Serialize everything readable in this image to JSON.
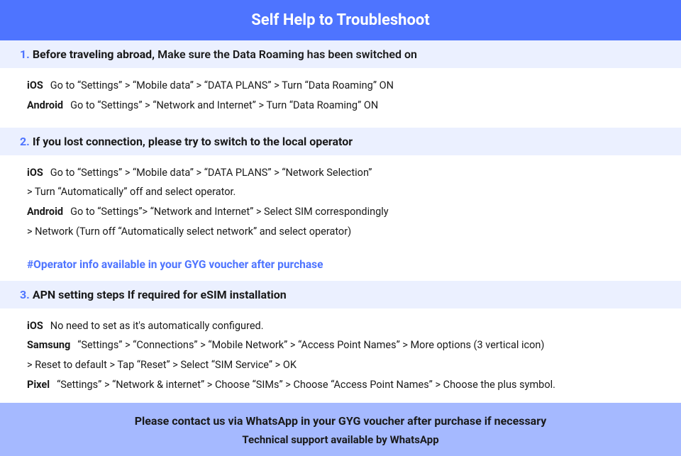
{
  "colors": {
    "header_bg": "#4e74ff",
    "header_text": "#ffffff",
    "section_header_bg": "#ebf0ff",
    "accent": "#4e74ff",
    "body_text": "#1a1a1a",
    "footer_bg": "#a5b9ff",
    "page_bg": "#ffffff"
  },
  "typography": {
    "title_fontsize": 22,
    "section_header_fontsize": 16,
    "body_fontsize": 14.5,
    "note_fontsize": 15.5,
    "footer_fontsize": 16
  },
  "title": "Self Help to Troubleshoot",
  "sections": [
    {
      "num": "1.",
      "bold_lead": "Before traveling abroad,",
      "rest": " Make sure the Data Roaming has been switched on",
      "instructions": [
        {
          "os": "iOS",
          "text": "Go to “Settings” > “Mobile data” > “DATA PLANS” > Turn “Data Roaming” ON",
          "cont": ""
        },
        {
          "os": "Android",
          "text": "Go to “Settings” > “Network and Internet” > Turn “Data Roaming” ON",
          "cont": ""
        }
      ],
      "note": ""
    },
    {
      "num": "2.",
      "bold_lead": "If you lost connection, please try to switch to the local operator",
      "rest": "",
      "instructions": [
        {
          "os": "iOS",
          "text": "Go to “Settings” > “Mobile data” > “DATA PLANS” > “Network Selection”",
          "cont": "> Turn “Automatically” off and select operator."
        },
        {
          "os": "Android",
          "text": "Go to “Settings”>  “Network and Internet” > Select SIM correspondingly",
          "cont": "> Network (Turn off “Automatically select network” and select operator)"
        }
      ],
      "note": "#Operator info available in your GYG voucher after purchase"
    },
    {
      "num": "3.",
      "bold_lead": "APN setting steps If required for eSIM installation",
      "rest": "",
      "instructions": [
        {
          "os": "iOS",
          "text": "No need to set as it's automatically configured.",
          "cont": ""
        },
        {
          "os": "Samsung",
          "text": "“Settings” > “Connections” > “Mobile Network” > “Access Point Names” > More options (3 vertical icon)",
          "cont": "> Reset to default > Tap “Reset” > Select “SIM Service” > OK"
        },
        {
          "os": "Pixel",
          "text": "“Settings” > “Network & internet” > Choose “SIMs” > Choose “Access Point Names” > Choose the plus symbol.",
          "cont": ""
        }
      ],
      "note": ""
    }
  ],
  "footer": {
    "line1": "Please contact us via WhatsApp  in your GYG voucher after purchase if necessary",
    "line2": "Technical support available by WhatsApp"
  }
}
